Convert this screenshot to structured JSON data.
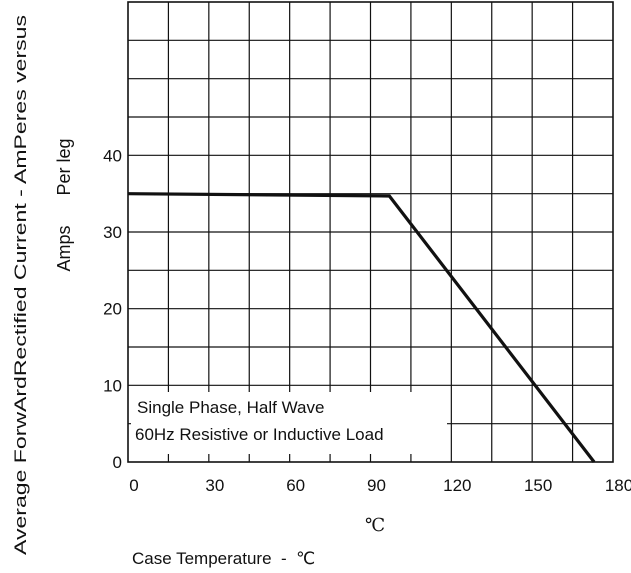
{
  "chart_data": {
    "type": "line",
    "ylabel_lines": [
      "Average ForwArdRectified Current -  AmPeres versus",
      "Amps      Per leg"
    ],
    "xlabel": "Case Temperature  -  ℃",
    "unit_note": "℃",
    "annotation_lines": [
      "Single Phase, Half Wave",
      "60Hz Resistive or Inductive Load"
    ],
    "x_ticks": [
      0,
      30,
      60,
      90,
      120,
      150,
      180
    ],
    "y_ticks": [
      0,
      10,
      20,
      30,
      40
    ],
    "xlim": [
      0,
      180
    ],
    "ylim": [
      0,
      60
    ],
    "grid": true,
    "series": [
      {
        "x": [
          0,
          97,
          173
        ],
        "y": [
          35,
          34.7,
          0
        ]
      }
    ]
  }
}
